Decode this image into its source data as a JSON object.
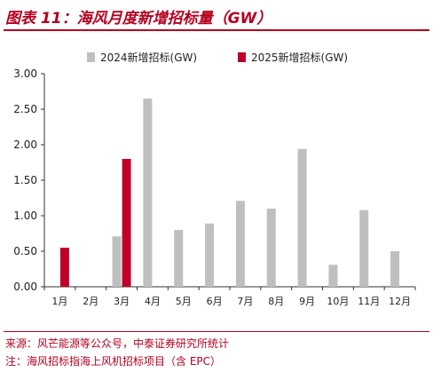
{
  "title": "图表 11：海风月度新增招标量（GW）",
  "source": "来源：风芒能源等公众号，中泰证券研究所统计",
  "remark": "注：海风招标指海上风机招标项目（含 EPC）",
  "colors": {
    "s2024": "#bfbfbf",
    "s2025": "#c0002a",
    "accent": "#b5001f"
  },
  "chart_data": {
    "type": "bar",
    "categories": [
      "1月",
      "2月",
      "3月",
      "4月",
      "5月",
      "6月",
      "7月",
      "8月",
      "9月",
      "10月",
      "11月",
      "12月"
    ],
    "series": [
      {
        "name": "2024新增招标(GW)",
        "values": [
          0,
          0,
          0.71,
          2.65,
          0.8,
          0.89,
          1.21,
          1.1,
          1.94,
          0.31,
          1.08,
          0.5
        ]
      },
      {
        "name": "2025新增招标(GW)",
        "values": [
          0.55,
          0,
          1.8,
          0,
          0,
          0,
          0,
          0,
          0,
          0,
          0,
          0
        ]
      }
    ],
    "yticks": [
      "0.00",
      "0.50",
      "1.00",
      "1.50",
      "2.00",
      "2.50",
      "3.00"
    ],
    "ylim": [
      0,
      3.0
    ],
    "legend": "top",
    "grid": false
  }
}
